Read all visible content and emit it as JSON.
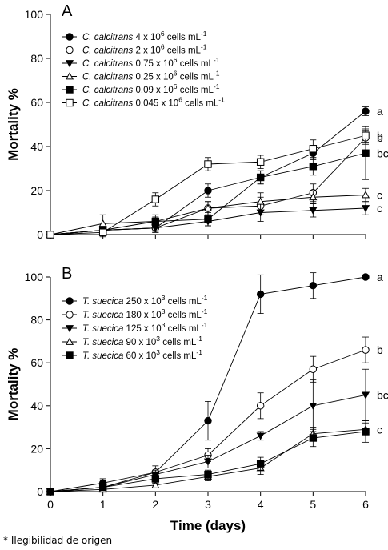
{
  "chart_data": [
    {
      "type": "line",
      "panel_label": "A",
      "xlabel": "",
      "ylabel": "Mortality %",
      "xlim": [
        0,
        6
      ],
      "ylim": [
        0,
        100
      ],
      "x_ticks": [
        0,
        1,
        2,
        3,
        4,
        5,
        6
      ],
      "y_ticks": [
        0,
        20,
        40,
        60,
        80,
        100
      ],
      "x_tick_labels": [
        "",
        "",
        "",
        "",
        "",
        "",
        ""
      ],
      "y_tick_labels": [
        "0",
        "20",
        "40",
        "60",
        "80",
        "100"
      ],
      "legend_placement": "top-left",
      "x": [
        0,
        1,
        2,
        3,
        4,
        5,
        6
      ],
      "series": [
        {
          "name": "C. calcitrans 4 x 10^6 cells mL^-1",
          "species": "C. calcitrans",
          "density": "4 x 10",
          "exp": "6",
          "unit": " cells mL",
          "unit_exp": "-1",
          "marker": "circle-filled",
          "values": [
            0,
            2,
            3,
            20,
            26,
            37,
            56
          ],
          "errors": [
            0,
            1,
            2,
            3,
            3,
            3,
            2
          ],
          "group": "a"
        },
        {
          "name": "C. calcitrans 2 x 10^6 cells mL^-1",
          "species": "C. calcitrans",
          "density": "2 x 10",
          "exp": "6",
          "unit": " cells mL",
          "unit_exp": "-1",
          "marker": "circle-open",
          "values": [
            0,
            2,
            3,
            12,
            13,
            19,
            44
          ],
          "errors": [
            0,
            1,
            2,
            3,
            4,
            4,
            3
          ],
          "group": "b"
        },
        {
          "name": "C. calcitrans 0.75 x 10^6 cells mL^-1",
          "species": "C. calcitrans",
          "density": "0.75 x 10",
          "exp": "6",
          "unit": " cells mL",
          "unit_exp": "-1",
          "marker": "triangle-down-filled",
          "values": [
            0,
            2,
            3,
            6,
            10,
            11,
            12
          ],
          "errors": [
            0,
            1,
            2,
            2,
            4,
            3,
            3
          ],
          "group": "c"
        },
        {
          "name": "C. calcitrans 0.25 x 10^6 cells mL^-1",
          "species": "C. calcitrans",
          "density": "0.25 x 10",
          "exp": "6",
          "unit": " cells mL",
          "unit_exp": "-1",
          "marker": "triangle-up-open",
          "values": [
            0,
            5,
            6,
            12,
            15,
            17,
            18
          ],
          "errors": [
            0,
            4,
            2,
            3,
            4,
            3,
            3
          ],
          "group": "c"
        },
        {
          "name": "C. calcitrans 0.09 x 10^6 cells mL^-1",
          "species": "C. calcitrans",
          "density": "0.09 x 10",
          "exp": "6",
          "unit": " cells mL",
          "unit_exp": "-1",
          "marker": "square-filled",
          "values": [
            0,
            2,
            6,
            7,
            26,
            31,
            37
          ],
          "errors": [
            0,
            1,
            3,
            3,
            3,
            4,
            12
          ],
          "group": "bc"
        },
        {
          "name": "C. calcitrans 0.045 x 10^6 cells mL^-1",
          "species": "C. calcitrans",
          "density": "0.045 x 10",
          "exp": "6",
          "unit": " cells mL",
          "unit_exp": "-1",
          "marker": "square-open",
          "values": [
            0,
            1,
            16,
            32,
            33,
            39,
            45
          ],
          "errors": [
            0,
            2,
            3,
            3,
            3,
            4,
            3
          ],
          "group": "b"
        }
      ]
    },
    {
      "type": "line",
      "panel_label": "B",
      "xlabel": "Time (days)",
      "ylabel": "Mortality %",
      "xlim": [
        0,
        6
      ],
      "ylim": [
        0,
        100
      ],
      "x_ticks": [
        0,
        1,
        2,
        3,
        4,
        5,
        6
      ],
      "y_ticks": [
        0,
        20,
        40,
        60,
        80,
        100
      ],
      "x_tick_labels": [
        "0",
        "1",
        "2",
        "3",
        "4",
        "5",
        "6"
      ],
      "y_tick_labels": [
        "0",
        "20",
        "40",
        "60",
        "80",
        "100"
      ],
      "legend_placement": "top-left",
      "x": [
        0,
        1,
        2,
        3,
        4,
        5,
        6
      ],
      "series": [
        {
          "name": "T. suecica 250 x 10^3 cells mL^-1",
          "species": "T. suecica",
          "density": "250 x 10",
          "exp": "3",
          "unit": " cells mL",
          "unit_exp": "-1",
          "marker": "circle-filled",
          "values": [
            0,
            4,
            9,
            33,
            92,
            96,
            100
          ],
          "errors": [
            0,
            2,
            2,
            9,
            9,
            6,
            0
          ],
          "group": "a"
        },
        {
          "name": "T. suecica 180 x 10^3 cells mL^-1",
          "species": "T. suecica",
          "density": "180 x 10",
          "exp": "3",
          "unit": " cells mL",
          "unit_exp": "-1",
          "marker": "circle-open",
          "values": [
            0,
            2,
            9,
            17,
            40,
            57,
            66
          ],
          "errors": [
            0,
            1,
            3,
            3,
            6,
            6,
            6
          ],
          "group": "b"
        },
        {
          "name": "T. suecica 125 x 10^3 cells mL^-1",
          "species": "T. suecica",
          "density": "125 x 10",
          "exp": "3",
          "unit": " cells mL",
          "unit_exp": "-1",
          "marker": "triangle-down-filled",
          "values": [
            0,
            2,
            8,
            14,
            26,
            40,
            45
          ],
          "errors": [
            0,
            1,
            2,
            3,
            2,
            12,
            12
          ],
          "group": "bc"
        },
        {
          "name": "T. suecica 90 x 10^3 cells mL^-1",
          "species": "T. suecica",
          "density": "90 x 10",
          "exp": "3",
          "unit": " cells mL",
          "unit_exp": "-1",
          "marker": "triangle-up-open",
          "values": [
            0,
            1,
            3,
            7,
            11,
            27,
            29
          ],
          "errors": [
            0,
            1,
            1,
            2,
            3,
            3,
            3
          ],
          "group": "c"
        },
        {
          "name": "T. suecica 60 x 10^3 cells mL^-1",
          "species": "T. suecica",
          "density": "60 x 10",
          "exp": "3",
          "unit": " cells mL",
          "unit_exp": "-1",
          "marker": "square-filled",
          "values": [
            0,
            2,
            6,
            8,
            13,
            25,
            28
          ],
          "errors": [
            0,
            1,
            2,
            2,
            3,
            4,
            5
          ],
          "group": "c"
        }
      ]
    }
  ],
  "footnote": "* Ilegibilidad de origen",
  "colors": {
    "line": "#000000",
    "background": "#ffffff"
  }
}
